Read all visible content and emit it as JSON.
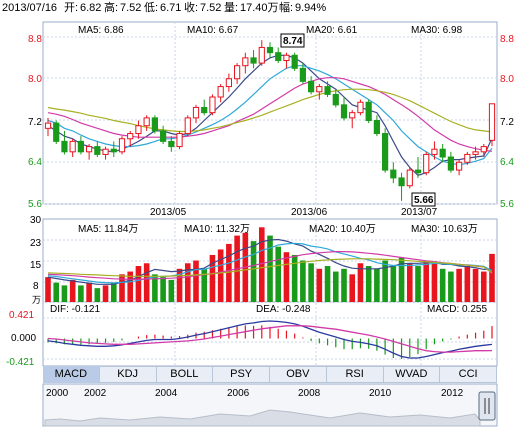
{
  "header": {
    "date": "2013/07/16",
    "open_label": "开:",
    "open": "6.82",
    "high_label": "高:",
    "high": "7.52",
    "low_label": "低:",
    "low": "6.71",
    "close_label": "收:",
    "close": "7.52",
    "volume_label": "量:",
    "volume": "17.40万",
    "change_label": "幅:",
    "change": "9.94%"
  },
  "price_panel": {
    "ma5_label": "MA5: 6.86",
    "ma10_label": "MA10: 6.67",
    "ma20_label": "MA20: 6.61",
    "ma30_label": "MA30: 6.98",
    "y_ticks": [
      "8.8",
      "8.0",
      "7.2",
      "6.4",
      "5.6"
    ],
    "x_ticks": [
      "2013/05",
      "2013/06",
      "2013/07"
    ],
    "max_callout": "8.74",
    "min_callout": "5.66"
  },
  "volume_panel": {
    "ma5_label": "MA5: 11.84万",
    "ma10_label": "MA10: 11.32万",
    "ma20_label": "MA20: 10.40万",
    "ma30_label": "MA30: 10.63万",
    "y_ticks": [
      "30",
      "23",
      "15",
      "8",
      "万"
    ]
  },
  "macd_panel": {
    "dif_label": "DIF: -0.121",
    "dea_label": "DEA: -0.248",
    "macd_label": "MACD: 0.255",
    "y_ticks": [
      "0.421",
      "0.000",
      "-0.421"
    ]
  },
  "tabs": [
    "MACD",
    "KDJ",
    "BOLL",
    "PSY",
    "OBV",
    "RSI",
    "WVAD",
    "CCI"
  ],
  "active_tab": "MACD",
  "timeline": {
    "years": [
      "2000",
      "2002",
      "2004",
      "2006",
      "2008",
      "2010",
      "2012"
    ]
  },
  "colors": {
    "up": "#e8141e",
    "down": "#1a9a1a",
    "ma5": "#3a4a8a",
    "ma10": "#2ea8d8",
    "ma20": "#d23aa8",
    "ma30": "#a8b022",
    "dif": "#2a3aa0",
    "dea": "#d23aa8",
    "grid": "#c9d6ea"
  },
  "chart_data": [
    {
      "type": "candlestick",
      "title": "",
      "x_ticks": [
        "2013/05",
        "2013/06",
        "2013/07"
      ],
      "ylim": [
        5.6,
        8.8
      ],
      "candles": [
        {
          "o": 7.05,
          "h": 7.25,
          "l": 6.9,
          "c": 7.15
        },
        {
          "o": 7.15,
          "h": 7.2,
          "l": 6.75,
          "c": 6.8
        },
        {
          "o": 6.8,
          "h": 7.0,
          "l": 6.55,
          "c": 6.6
        },
        {
          "o": 6.6,
          "h": 6.85,
          "l": 6.5,
          "c": 6.8
        },
        {
          "o": 6.8,
          "h": 6.9,
          "l": 6.55,
          "c": 6.6
        },
        {
          "o": 6.6,
          "h": 6.75,
          "l": 6.45,
          "c": 6.7
        },
        {
          "o": 6.7,
          "h": 6.8,
          "l": 6.5,
          "c": 6.55
        },
        {
          "o": 6.55,
          "h": 6.7,
          "l": 6.45,
          "c": 6.65
        },
        {
          "o": 6.65,
          "h": 6.8,
          "l": 6.5,
          "c": 6.6
        },
        {
          "o": 6.6,
          "h": 6.9,
          "l": 6.55,
          "c": 6.85
        },
        {
          "o": 6.85,
          "h": 7.0,
          "l": 6.7,
          "c": 6.95
        },
        {
          "o": 6.95,
          "h": 7.2,
          "l": 6.85,
          "c": 7.1
        },
        {
          "o": 7.1,
          "h": 7.3,
          "l": 7.0,
          "c": 7.25
        },
        {
          "o": 7.25,
          "h": 7.3,
          "l": 6.95,
          "c": 7.0
        },
        {
          "o": 7.0,
          "h": 7.1,
          "l": 6.75,
          "c": 6.8
        },
        {
          "o": 6.8,
          "h": 6.9,
          "l": 6.6,
          "c": 6.7
        },
        {
          "o": 6.7,
          "h": 7.0,
          "l": 6.65,
          "c": 6.95
        },
        {
          "o": 6.95,
          "h": 7.3,
          "l": 6.9,
          "c": 7.25
        },
        {
          "o": 7.25,
          "h": 7.5,
          "l": 7.15,
          "c": 7.45
        },
        {
          "o": 7.45,
          "h": 7.6,
          "l": 7.3,
          "c": 7.35
        },
        {
          "o": 7.35,
          "h": 7.7,
          "l": 7.3,
          "c": 7.65
        },
        {
          "o": 7.65,
          "h": 7.9,
          "l": 7.55,
          "c": 7.85
        },
        {
          "o": 7.85,
          "h": 8.1,
          "l": 7.75,
          "c": 8.0
        },
        {
          "o": 8.0,
          "h": 8.3,
          "l": 7.9,
          "c": 8.25
        },
        {
          "o": 8.25,
          "h": 8.5,
          "l": 8.1,
          "c": 8.4
        },
        {
          "o": 8.4,
          "h": 8.55,
          "l": 8.2,
          "c": 8.3
        },
        {
          "o": 8.3,
          "h": 8.74,
          "l": 8.25,
          "c": 8.6
        },
        {
          "o": 8.6,
          "h": 8.7,
          "l": 8.4,
          "c": 8.5
        },
        {
          "o": 8.5,
          "h": 8.6,
          "l": 8.3,
          "c": 8.35
        },
        {
          "o": 8.35,
          "h": 8.5,
          "l": 8.2,
          "c": 8.45
        },
        {
          "o": 8.45,
          "h": 8.5,
          "l": 8.15,
          "c": 8.2
        },
        {
          "o": 8.2,
          "h": 8.3,
          "l": 7.9,
          "c": 7.95
        },
        {
          "o": 7.95,
          "h": 8.05,
          "l": 7.7,
          "c": 7.75
        },
        {
          "o": 7.75,
          "h": 7.9,
          "l": 7.6,
          "c": 7.85
        },
        {
          "o": 7.85,
          "h": 7.95,
          "l": 7.65,
          "c": 7.7
        },
        {
          "o": 7.7,
          "h": 7.8,
          "l": 7.45,
          "c": 7.5
        },
        {
          "o": 7.5,
          "h": 7.65,
          "l": 7.2,
          "c": 7.25
        },
        {
          "o": 7.25,
          "h": 7.4,
          "l": 7.05,
          "c": 7.35
        },
        {
          "o": 7.35,
          "h": 7.6,
          "l": 7.3,
          "c": 7.55
        },
        {
          "o": 7.55,
          "h": 7.6,
          "l": 7.15,
          "c": 7.2
        },
        {
          "o": 7.2,
          "h": 7.3,
          "l": 6.9,
          "c": 6.95
        },
        {
          "o": 6.95,
          "h": 7.05,
          "l": 6.2,
          "c": 6.25
        },
        {
          "o": 6.25,
          "h": 6.4,
          "l": 6.0,
          "c": 6.1
        },
        {
          "o": 6.1,
          "h": 6.2,
          "l": 5.66,
          "c": 5.95
        },
        {
          "o": 5.95,
          "h": 6.3,
          "l": 5.9,
          "c": 6.25
        },
        {
          "o": 6.25,
          "h": 6.5,
          "l": 6.1,
          "c": 6.2
        },
        {
          "o": 6.2,
          "h": 6.6,
          "l": 6.15,
          "c": 6.55
        },
        {
          "o": 6.55,
          "h": 6.8,
          "l": 6.45,
          "c": 6.65
        },
        {
          "o": 6.65,
          "h": 6.75,
          "l": 6.4,
          "c": 6.5
        },
        {
          "o": 6.5,
          "h": 6.6,
          "l": 6.2,
          "c": 6.25
        },
        {
          "o": 6.25,
          "h": 6.45,
          "l": 6.15,
          "c": 6.4
        },
        {
          "o": 6.4,
          "h": 6.6,
          "l": 6.35,
          "c": 6.55
        },
        {
          "o": 6.55,
          "h": 6.7,
          "l": 6.45,
          "c": 6.6
        },
        {
          "o": 6.6,
          "h": 6.75,
          "l": 6.5,
          "c": 6.7
        },
        {
          "o": 6.82,
          "h": 7.52,
          "l": 6.71,
          "c": 7.52
        }
      ],
      "moving_averages": [
        {
          "name": "MA5",
          "values": [
            7.1,
            7.0,
            6.9,
            6.85,
            6.75,
            6.7,
            6.65,
            6.62,
            6.6,
            6.65,
            6.72,
            6.8,
            6.9,
            7.0,
            7.0,
            6.95,
            6.92,
            6.95,
            7.05,
            7.2,
            7.35,
            7.5,
            7.65,
            7.82,
            8.0,
            8.15,
            8.3,
            8.4,
            8.45,
            8.45,
            8.4,
            8.3,
            8.15,
            8.0,
            7.9,
            7.8,
            7.65,
            7.5,
            7.45,
            7.4,
            7.35,
            7.1,
            6.8,
            6.5,
            6.3,
            6.15,
            6.2,
            6.3,
            6.42,
            6.45,
            6.45,
            6.48,
            6.5,
            6.52,
            6.86
          ]
        },
        {
          "name": "MA10",
          "values": [
            7.2,
            7.15,
            7.05,
            7.0,
            6.92,
            6.85,
            6.8,
            6.75,
            6.72,
            6.7,
            6.7,
            6.72,
            6.75,
            6.8,
            6.85,
            6.85,
            6.88,
            6.92,
            6.98,
            7.05,
            7.12,
            7.2,
            7.3,
            7.42,
            7.55,
            7.7,
            7.85,
            8.0,
            8.1,
            8.2,
            8.25,
            8.25,
            8.2,
            8.15,
            8.08,
            8.0,
            7.9,
            7.8,
            7.7,
            7.6,
            7.5,
            7.35,
            7.2,
            7.0,
            6.85,
            6.7,
            6.6,
            6.5,
            6.42,
            6.38,
            6.35,
            6.38,
            6.42,
            6.47,
            6.67
          ]
        },
        {
          "name": "MA20",
          "values": [
            7.35,
            7.32,
            7.28,
            7.22,
            7.15,
            7.1,
            7.05,
            7.0,
            6.95,
            6.92,
            6.9,
            6.88,
            6.88,
            6.88,
            6.88,
            6.88,
            6.88,
            6.9,
            6.92,
            6.95,
            7.0,
            7.05,
            7.1,
            7.18,
            7.25,
            7.32,
            7.42,
            7.52,
            7.62,
            7.72,
            7.82,
            7.9,
            7.95,
            8.0,
            8.02,
            8.02,
            8.0,
            7.95,
            7.9,
            7.85,
            7.78,
            7.7,
            7.6,
            7.5,
            7.4,
            7.28,
            7.15,
            7.02,
            6.92,
            6.82,
            6.75,
            6.7,
            6.66,
            6.63,
            6.61
          ]
        },
        {
          "name": "MA30",
          "values": [
            7.45,
            7.42,
            7.4,
            7.37,
            7.34,
            7.3,
            7.27,
            7.24,
            7.2,
            7.17,
            7.14,
            7.1,
            7.07,
            7.04,
            7.02,
            7.0,
            6.99,
            6.99,
            7.0,
            7.02,
            7.05,
            7.08,
            7.12,
            7.16,
            7.2,
            7.25,
            7.3,
            7.36,
            7.42,
            7.48,
            7.54,
            7.6,
            7.65,
            7.7,
            7.74,
            7.77,
            7.79,
            7.8,
            7.8,
            7.79,
            7.77,
            7.74,
            7.7,
            7.64,
            7.58,
            7.5,
            7.42,
            7.34,
            7.26,
            7.18,
            7.12,
            7.06,
            7.02,
            7.0,
            6.98
          ]
        }
      ]
    },
    {
      "type": "bar",
      "title": "",
      "ylim": [
        0,
        30
      ],
      "y_ticks": [
        30,
        23,
        15,
        8
      ],
      "unit": "万",
      "volumes": [
        9,
        7,
        6,
        8,
        6,
        7,
        5,
        6,
        7,
        10,
        11,
        13,
        14,
        10,
        9,
        8,
        12,
        14,
        15,
        12,
        17,
        19,
        21,
        24,
        25,
        22,
        27,
        24,
        20,
        18,
        17,
        15,
        14,
        12,
        13,
        11,
        12,
        10,
        14,
        13,
        12,
        15,
        13,
        16,
        14,
        13,
        15,
        14,
        12,
        11,
        12,
        13,
        12,
        11,
        17.4
      ],
      "moving_averages": [
        {
          "name": "MA5",
          "values": [
            9,
            8.5,
            8,
            7.6,
            7.2,
            6.8,
            6.4,
            6.4,
            6.4,
            7.2,
            7.8,
            9.2,
            10.6,
            11.8,
            11.4,
            11,
            11.2,
            11.6,
            11.8,
            12.2,
            14,
            15.4,
            16.6,
            18.2,
            19.4,
            20.2,
            21.8,
            22.4,
            22.6,
            22,
            21,
            20.2,
            18.4,
            17.2,
            15.8,
            14.2,
            13,
            12.2,
            12,
            12,
            12,
            12.4,
            13,
            13.8,
            14,
            14,
            14.2,
            14.4,
            13.6,
            13.6,
            13,
            12.8,
            12.4,
            11.8,
            11.84
          ]
        },
        {
          "name": "MA10",
          "values": [
            9.5,
            9.2,
            8.8,
            8.4,
            8,
            7.6,
            7.2,
            7,
            6.9,
            7.1,
            7.3,
            7.8,
            8.5,
            9.1,
            9.3,
            9.4,
            10,
            10.9,
            11.7,
            11.8,
            12.6,
            13.3,
            14.1,
            15.2,
            16.3,
            17.2,
            18.7,
            19.5,
            20.6,
            21,
            21.2,
            21,
            20.2,
            19.8,
            19.2,
            18.1,
            17.4,
            16.6,
            15.8,
            15.2,
            14.2,
            13.6,
            13.2,
            13.2,
            13.2,
            13.4,
            13.6,
            14,
            13.8,
            13.6,
            13.4,
            13.4,
            13.2,
            12.9,
            11.32
          ]
        },
        {
          "name": "MA20",
          "values": [
            10,
            9.9,
            9.7,
            9.5,
            9.3,
            9,
            8.8,
            8.6,
            8.4,
            8.3,
            8.2,
            8.2,
            8.3,
            8.4,
            8.5,
            8.6,
            8.8,
            9.1,
            9.5,
            9.9,
            10.3,
            10.8,
            11.4,
            12,
            12.6,
            13.2,
            13.9,
            14.6,
            15.3,
            15.9,
            16.5,
            17.1,
            17.5,
            17.8,
            18,
            18.2,
            18.2,
            18.1,
            17.9,
            17.6,
            17.3,
            16.9,
            16.5,
            16.1,
            15.7,
            15.3,
            14.9,
            14.6,
            14.2,
            13.9,
            13.6,
            13.3,
            13,
            12.7,
            10.4
          ]
        },
        {
          "name": "MA30",
          "values": [
            10.5,
            10.4,
            10.3,
            10.2,
            10,
            9.9,
            9.8,
            9.6,
            9.5,
            9.4,
            9.3,
            9.3,
            9.3,
            9.3,
            9.3,
            9.4,
            9.5,
            9.6,
            9.8,
            10,
            10.2,
            10.5,
            10.8,
            11.2,
            11.6,
            12,
            12.4,
            12.8,
            13.2,
            13.6,
            14,
            14.4,
            14.7,
            15,
            15.2,
            15.4,
            15.5,
            15.6,
            15.6,
            15.6,
            15.5,
            15.4,
            15.3,
            15.1,
            14.9,
            14.7,
            14.5,
            14.3,
            14.1,
            13.9,
            13.6,
            13.3,
            13,
            12.7,
            10.63
          ]
        }
      ]
    },
    {
      "type": "line",
      "title": "",
      "ylim": [
        -0.421,
        0.421
      ],
      "y_ticks": [
        0.421,
        0.0,
        -0.421
      ],
      "macd": [
        -0.08,
        -0.1,
        -0.12,
        -0.13,
        -0.13,
        -0.12,
        -0.11,
        -0.09,
        -0.07,
        -0.04,
        0.0,
        0.04,
        0.07,
        0.08,
        0.06,
        0.04,
        0.05,
        0.08,
        0.12,
        0.14,
        0.17,
        0.2,
        0.23,
        0.25,
        0.27,
        0.26,
        0.27,
        0.24,
        0.2,
        0.16,
        0.1,
        0.02,
        -0.05,
        -0.1,
        -0.14,
        -0.18,
        -0.22,
        -0.22,
        -0.2,
        -0.21,
        -0.25,
        -0.33,
        -0.4,
        -0.42,
        -0.38,
        -0.32,
        -0.22,
        -0.12,
        -0.06,
        -0.02,
        0.04,
        0.08,
        0.12,
        0.16,
        0.255
      ],
      "series": [
        {
          "name": "DIF",
          "values": [
            -0.05,
            -0.07,
            -0.1,
            -0.12,
            -0.14,
            -0.15,
            -0.16,
            -0.16,
            -0.15,
            -0.13,
            -0.1,
            -0.07,
            -0.04,
            -0.02,
            -0.02,
            -0.02,
            0.0,
            0.03,
            0.07,
            0.1,
            0.14,
            0.18,
            0.22,
            0.26,
            0.3,
            0.32,
            0.35,
            0.36,
            0.35,
            0.33,
            0.3,
            0.25,
            0.19,
            0.13,
            0.08,
            0.03,
            -0.02,
            -0.06,
            -0.08,
            -0.11,
            -0.15,
            -0.22,
            -0.3,
            -0.37,
            -0.4,
            -0.4,
            -0.37,
            -0.33,
            -0.29,
            -0.26,
            -0.22,
            -0.19,
            -0.16,
            -0.14,
            -0.121
          ]
        },
        {
          "name": "DEA",
          "values": [
            0.0,
            -0.01,
            -0.03,
            -0.05,
            -0.07,
            -0.09,
            -0.1,
            -0.11,
            -0.12,
            -0.12,
            -0.12,
            -0.11,
            -0.1,
            -0.09,
            -0.08,
            -0.07,
            -0.06,
            -0.05,
            -0.03,
            -0.01,
            0.02,
            0.05,
            0.08,
            0.11,
            0.14,
            0.17,
            0.2,
            0.22,
            0.24,
            0.26,
            0.26,
            0.26,
            0.25,
            0.23,
            0.21,
            0.19,
            0.16,
            0.13,
            0.1,
            0.07,
            0.03,
            -0.01,
            -0.06,
            -0.11,
            -0.16,
            -0.21,
            -0.25,
            -0.27,
            -0.28,
            -0.28,
            -0.27,
            -0.26,
            -0.25,
            -0.25,
            -0.248
          ]
        }
      ]
    }
  ]
}
